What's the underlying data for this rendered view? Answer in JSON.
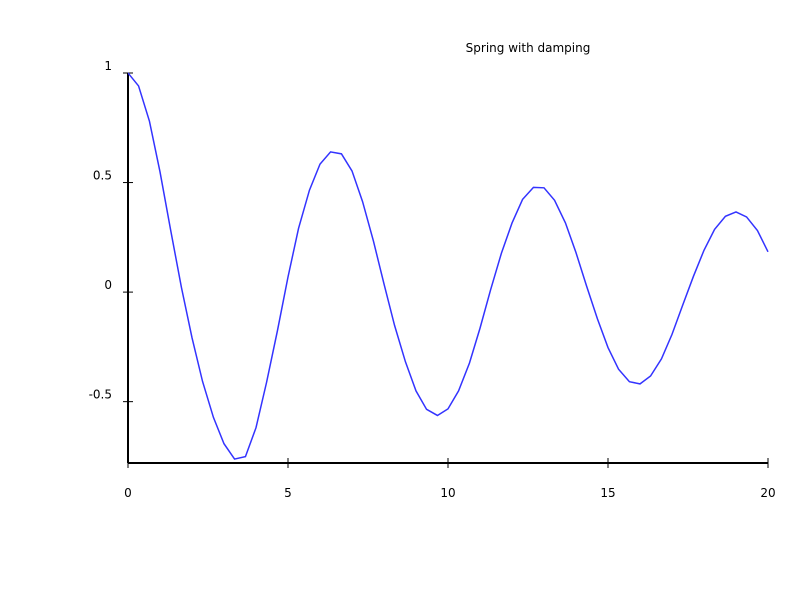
{
  "chart_data": {
    "type": "line",
    "title": "Spring with damping",
    "xlabel": "",
    "ylabel": "",
    "xlim": [
      0,
      20
    ],
    "ylim": [
      -0.78,
      1
    ],
    "xticks": [
      0,
      5,
      10,
      15,
      20
    ],
    "xtick_labels": [
      "0",
      "5",
      "10",
      "15",
      "20"
    ],
    "yticks": [
      1,
      0.5,
      0,
      -0.5
    ],
    "ytick_labels": [
      "1",
      "0.5",
      "0",
      "-0.5"
    ],
    "grid": false,
    "legend": "none",
    "series": [
      {
        "color": "#3333ff",
        "x": [
          0.0,
          0.33,
          0.67,
          1.0,
          1.33,
          1.67,
          2.0,
          2.33,
          2.67,
          3.0,
          3.33,
          3.67,
          4.0,
          4.33,
          4.67,
          5.0,
          5.33,
          5.67,
          6.0,
          6.33,
          6.67,
          7.0,
          7.33,
          7.67,
          8.0,
          8.33,
          8.67,
          9.0,
          9.33,
          9.67,
          10.0,
          10.33,
          10.67,
          11.0,
          11.33,
          11.67,
          12.0,
          12.33,
          12.67,
          13.0,
          13.33,
          13.67,
          14.0,
          14.33,
          14.67,
          15.0,
          15.33,
          15.67,
          16.0,
          16.33,
          16.67,
          17.0,
          17.33,
          17.67,
          18.0,
          18.33,
          18.67,
          19.0,
          19.33,
          19.67,
          20.0
        ],
        "y": [
          1.0,
          0.941,
          0.78,
          0.549,
          0.285,
          0.021,
          -0.208,
          -0.408,
          -0.572,
          -0.692,
          -0.762,
          -0.751,
          -0.619,
          -0.412,
          -0.176,
          0.069,
          0.291,
          0.465,
          0.584,
          0.64,
          0.631,
          0.553,
          0.413,
          0.233,
          0.037,
          -0.152,
          -0.318,
          -0.451,
          -0.535,
          -0.563,
          -0.533,
          -0.451,
          -0.324,
          -0.165,
          0.01,
          0.178,
          0.315,
          0.423,
          0.478,
          0.476,
          0.419,
          0.316,
          0.18,
          0.028,
          -0.122,
          -0.253,
          -0.352,
          -0.409,
          -0.419,
          -0.383,
          -0.305,
          -0.193,
          -0.061,
          0.072,
          0.191,
          0.286,
          0.346,
          0.366,
          0.343,
          0.281,
          0.184
        ]
      }
    ]
  }
}
